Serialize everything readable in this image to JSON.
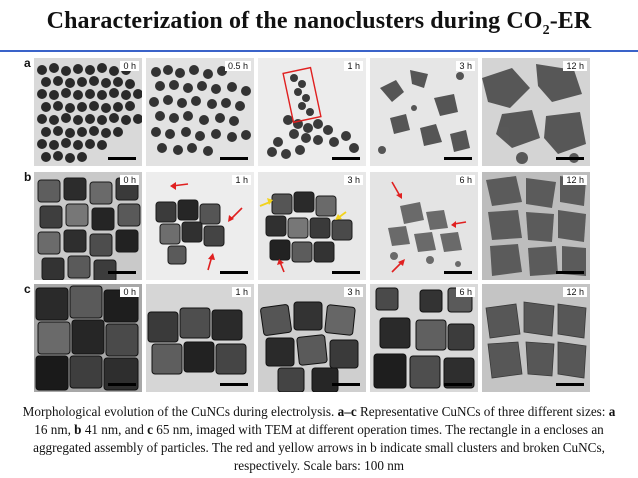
{
  "slide": {
    "title": "Characterization of the nanoclusters during CO",
    "title_sub": "2",
    "title_tail": "-ER",
    "accent_color": "#3a63c9"
  },
  "figure": {
    "rows": [
      {
        "letter": "a",
        "times": [
          "0 h",
          "0.5 h",
          "1 h",
          "3 h",
          "12 h"
        ]
      },
      {
        "letter": "b",
        "times": [
          "0 h",
          "1 h",
          "3 h",
          "6 h",
          "12 h"
        ]
      },
      {
        "letter": "c",
        "times": [
          "0 h",
          "1 h",
          "3 h",
          "6 h",
          "12 h"
        ]
      }
    ],
    "arrow_colors": {
      "red": "#e02020",
      "yellow": "#f2d21c"
    }
  },
  "caption": {
    "p1": "Morphological evolution of the CuNCs during electrolysis. ",
    "p2": "a–c",
    "p3": " Representative CuNCs of three different sizes: ",
    "p4": "a",
    "p5": " 16 nm, ",
    "p6": "b",
    "p7": " 41 nm, and ",
    "p8": "c",
    "p9": " 65 nm, imaged with TEM at different operation times. The rectangle in a encloses an aggregated assembly of particles. The red and yellow arrows in b indicate small clusters and broken CuNCs, respectively. Scale bars: 100 nm"
  }
}
